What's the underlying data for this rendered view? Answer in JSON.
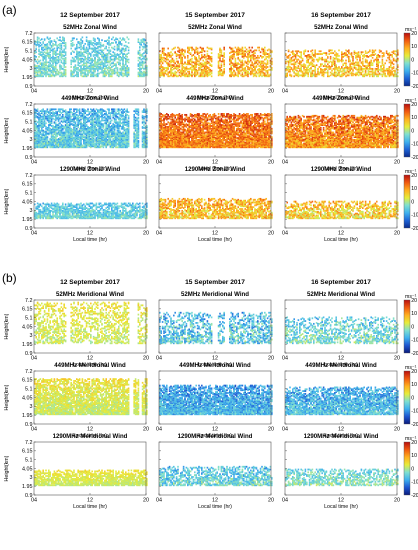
{
  "colors": {
    "zonal_scale": [
      "#0a2a8c",
      "#1e63d6",
      "#3fb1ee",
      "#7fe0d0",
      "#e6ec3a",
      "#ffb020",
      "#f05a10",
      "#b80f0f"
    ],
    "meridional_scale": [
      "#0a1a7a",
      "#1e55d0",
      "#3fb0ee",
      "#7fe0d0",
      "#e6ec3a",
      "#ffb020",
      "#f05a10",
      "#b80f0f"
    ],
    "axis": "#555555"
  },
  "chart_data": {
    "type": "heatmap",
    "panel_labels": [
      "(a)",
      "(b)"
    ],
    "dates": [
      "12 September 2017",
      "15 September 2017",
      "16 September 2017"
    ],
    "x_ticks": [
      "04",
      "12",
      "20"
    ],
    "x_label": "Local time (hr)",
    "y_ticks": [
      "0.9",
      "1.95",
      "3",
      "4.05",
      "5.1",
      "6.15",
      "7.2"
    ],
    "y_label": "Height(km)",
    "colorbar_ticks": [
      "20",
      "10",
      "0",
      "-10",
      "-20"
    ],
    "colorbar_unit": "ms⁻¹",
    "sections": [
      {
        "label": "(a)",
        "rows": [
          {
            "title": "52MHz Zonal Wind",
            "panels": [
              {
                "date": "12 September 2017",
                "mean": -3,
                "spread": 4,
                "cover": 0.55,
                "bottom": 1.95,
                "top": 6.6,
                "gaps": [
                  [
                    8.5,
                    9.2
                  ],
                  [
                    17.5,
                    18.6
                  ]
                ]
              },
              {
                "date": "15 September 2017",
                "mean": 7,
                "spread": 6,
                "cover": 0.55,
                "bottom": 1.95,
                "top": 5.4,
                "gaps": [
                  [
                    11.5,
                    12.2
                  ],
                  [
                    13.2,
                    13.8
                  ]
                ]
              },
              {
                "date": "16 September 2017",
                "mean": 6,
                "spread": 6,
                "cover": 0.5,
                "bottom": 1.95,
                "top": 5.1,
                "gaps": []
              }
            ]
          },
          {
            "title": "449MHz Zonal Wind",
            "panels": [
              {
                "date": "12 September 2017",
                "mean": -5,
                "spread": 5,
                "cover": 0.85,
                "bottom": 1.95,
                "top": 6.5,
                "gaps": [
                  [
                    17.5,
                    18.0
                  ],
                  [
                    18.8,
                    19.3
                  ]
                ]
              },
              {
                "date": "15 September 2017",
                "mean": 11,
                "spread": 5,
                "cover": 0.95,
                "bottom": 1.95,
                "top": 6.0,
                "gaps": []
              },
              {
                "date": "16 September 2017",
                "mean": 10,
                "spread": 6,
                "cover": 0.9,
                "bottom": 1.95,
                "top": 5.8,
                "gaps": []
              }
            ]
          },
          {
            "title": "1290MHz Zonal Wind",
            "panels": [
              {
                "date": "12 September 2017",
                "mean": -4,
                "spread": 4,
                "cover": 0.75,
                "bottom": 1.95,
                "top": 3.8,
                "gaps": []
              },
              {
                "date": "15 September 2017",
                "mean": 6,
                "spread": 6,
                "cover": 0.7,
                "bottom": 1.95,
                "top": 4.3,
                "gaps": []
              },
              {
                "date": "16 September 2017",
                "mean": 5,
                "spread": 6,
                "cover": 0.6,
                "bottom": 1.95,
                "top": 4.0,
                "gaps": []
              }
            ]
          }
        ]
      },
      {
        "label": "(b)",
        "rows": [
          {
            "title": "52MHz Meridional Wind",
            "panels": [
              {
                "date": "12 September 2017",
                "mean": 1,
                "spread": 3,
                "cover": 0.45,
                "bottom": 1.95,
                "top": 6.9,
                "gaps": [
                  [
                    8.5,
                    9.2
                  ],
                  [
                    17.5,
                    18.6
                  ]
                ]
              },
              {
                "date": "15 September 2017",
                "mean": -5,
                "spread": 6,
                "cover": 0.5,
                "bottom": 1.95,
                "top": 5.6,
                "gaps": [
                  [
                    11.5,
                    12.2
                  ],
                  [
                    13.2,
                    13.8
                  ]
                ]
              },
              {
                "date": "16 September 2017",
                "mean": -3,
                "spread": 5,
                "cover": 0.45,
                "bottom": 1.95,
                "top": 5.1,
                "gaps": []
              }
            ]
          },
          {
            "title": "449MHz Meridional Wind",
            "panels": [
              {
                "date": "12 September 2017",
                "mean": 1,
                "spread": 3,
                "cover": 0.85,
                "bottom": 1.95,
                "top": 6.2,
                "gaps": [
                  [
                    17.5,
                    18.0
                  ],
                  [
                    18.8,
                    19.3
                  ]
                ]
              },
              {
                "date": "15 September 2017",
                "mean": -7,
                "spread": 5,
                "cover": 0.95,
                "bottom": 1.95,
                "top": 5.4,
                "gaps": []
              },
              {
                "date": "16 September 2017",
                "mean": -6,
                "spread": 5,
                "cover": 0.85,
                "bottom": 1.95,
                "top": 5.2,
                "gaps": []
              }
            ]
          },
          {
            "title": "1290MHz Meridional Wind",
            "panels": [
              {
                "date": "12 September 2017",
                "mean": 1,
                "spread": 2,
                "cover": 0.8,
                "bottom": 1.95,
                "top": 3.8,
                "gaps": []
              },
              {
                "date": "15 September 2017",
                "mean": -4,
                "spread": 5,
                "cover": 0.6,
                "bottom": 1.95,
                "top": 4.2,
                "gaps": []
              },
              {
                "date": "16 September 2017",
                "mean": -2,
                "spread": 4,
                "cover": 0.55,
                "bottom": 1.95,
                "top": 3.9,
                "gaps": []
              }
            ]
          }
        ]
      }
    ]
  }
}
